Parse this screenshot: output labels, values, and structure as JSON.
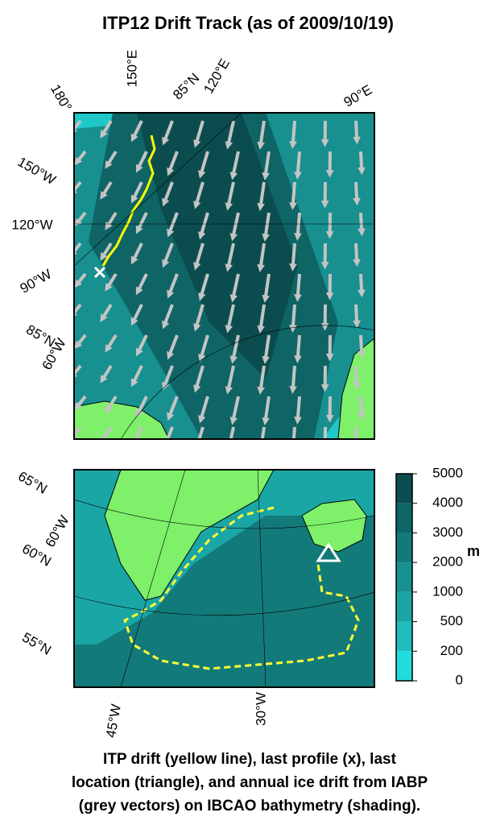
{
  "title": "ITP12 Drift Track (as of 2009/10/19)",
  "top_map": {
    "labels": [
      "180°",
      "150°E",
      "85°N",
      "120°E",
      "90°E",
      "150°W",
      "120°W",
      "90°W",
      "85°N",
      "60°W"
    ]
  },
  "bottom_map": {
    "labels": [
      "65°N",
      "60°W",
      "60°N",
      "55°N",
      "45°W",
      "30°W"
    ]
  },
  "colorbar": {
    "unit": "m",
    "levels": [
      5000,
      4000,
      3000,
      2000,
      1000,
      500,
      200,
      0
    ],
    "band_colors": [
      "#0b4d4e",
      "#0f6465",
      "#137a7a",
      "#17908f",
      "#1aa6a5",
      "#1dbebd",
      "#20dcdc"
    ]
  },
  "caption": [
    "ITP drift (yellow line), last profile (x), last",
    "location (triangle), and annual ice drift from IABP",
    "(grey vectors) on IBCAO bathymetry (shading)."
  ]
}
